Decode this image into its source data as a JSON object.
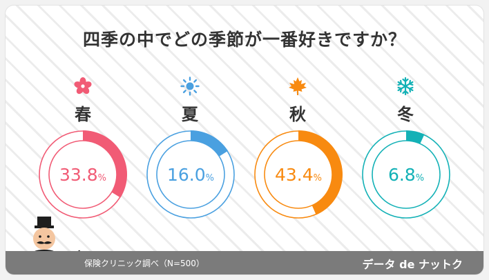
{
  "title": "四季の中でどの季節が一番好きですか？",
  "colors": {
    "spring": "#f15b75",
    "summer": "#4aa0e0",
    "autumn": "#f88a10",
    "winter": "#13b1b6"
  },
  "chart_data": {
    "type": "pie",
    "title": "四季の中でどの季節が一番好きですか？",
    "unit": "%",
    "categories": [
      "春",
      "夏",
      "秋",
      "冬"
    ],
    "values": [
      33.8,
      16.0,
      43.4,
      6.8
    ],
    "icons": [
      "sakura-icon",
      "sun-icon",
      "maple-leaf-icon",
      "snowflake-icon"
    ]
  },
  "footer": {
    "source": "保険クリニック調べ（N=500）",
    "brand": "データ de ナットク"
  }
}
